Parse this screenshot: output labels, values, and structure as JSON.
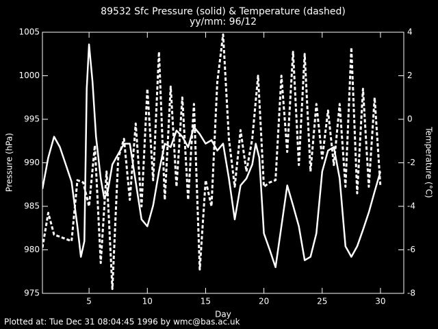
{
  "chart_data": {
    "type": "line",
    "title": "89532 Sfc Pressure (solid) & Temperature (dashed)",
    "subtitle": "yy/mm: 96/12",
    "x_label": "Day",
    "y_label": "Pressure (hPa)",
    "y2_label": "Temperature (°C)",
    "annotation": "Plotted at: Tue Dec 31 08:04:45 1996 by wmc@bas.ac.uk",
    "xlim": [
      1,
      32
    ],
    "xticks": [
      5,
      10,
      15,
      20,
      25,
      30
    ],
    "ylim": [
      975,
      1005
    ],
    "yticks": [
      975,
      980,
      985,
      990,
      995,
      1000,
      1005
    ],
    "y2lim": [
      -8,
      4
    ],
    "y2ticks": [
      -8,
      -6,
      -4,
      -2,
      0,
      2,
      4
    ],
    "series": [
      {
        "color": "#ffffff",
        "style": "solid",
        "x": [
          1,
          1.5,
          2,
          2.5,
          3,
          3.5,
          4,
          4.3,
          4.6,
          4.8,
          5,
          5.3,
          5.6,
          6,
          6.3,
          6.6,
          7,
          7.5,
          8,
          8.5,
          9,
          9.5,
          10,
          10.5,
          11,
          11.5,
          12,
          12.5,
          13,
          13.5,
          14,
          14.5,
          15,
          15.5,
          16,
          16.5,
          17,
          17.5,
          18,
          18.5,
          19,
          19.3,
          19.6,
          20,
          20.5,
          21,
          21.5,
          22,
          22.5,
          23,
          23.5,
          24,
          24.5,
          25,
          25.5,
          26,
          26.5,
          27,
          27.5,
          28,
          28.5,
          29,
          29.5,
          30
        ],
        "values": [
          987,
          990.6,
          993,
          991.8,
          989.8,
          987.8,
          982.7,
          979.2,
          981,
          998.5,
          1003.6,
          999.3,
          993,
          988.2,
          985.9,
          986.7,
          989.8,
          991,
          992.2,
          992.2,
          987.8,
          983.5,
          982.7,
          985.1,
          989,
          992.2,
          991.8,
          993.7,
          993,
          991.8,
          994.1,
          993.3,
          992.2,
          992.6,
          991.4,
          992.2,
          988.2,
          983.5,
          987.4,
          988.2,
          989.8,
          992.2,
          990.6,
          981.9,
          980,
          978,
          982.7,
          987.4,
          985.1,
          982.7,
          978.8,
          979.2,
          981.9,
          989,
          991.4,
          991.8,
          988.2,
          980.4,
          979.2,
          980.4,
          982.3,
          984.3,
          986.7,
          989
        ]
      },
      {
        "color": "#ffffff",
        "style": "dashed",
        "axis": "y2",
        "x": [
          1,
          1.5,
          2,
          3,
          3.5,
          4,
          4.5,
          5,
          5.5,
          6,
          6.5,
          7,
          7.5,
          8,
          8.5,
          9,
          9.5,
          10,
          10.5,
          11,
          11.5,
          12,
          12.5,
          13,
          13.5,
          14,
          14.5,
          15,
          15.5,
          16,
          16.5,
          17,
          17.5,
          18,
          18.5,
          19,
          19.5,
          20,
          20.5,
          21,
          21.5,
          22,
          22.5,
          23,
          23.5,
          24,
          24.5,
          25,
          25.5,
          26,
          26.5,
          27,
          27.5,
          28,
          28.5,
          29,
          29.5,
          30
        ],
        "values": [
          -5.9,
          -4.3,
          -5.3,
          -5.5,
          -5.6,
          -2.8,
          -2.9,
          -4,
          -1.2,
          -6.6,
          -2.4,
          -7.8,
          -1.8,
          -0.9,
          -3.7,
          -0.2,
          -4,
          1.4,
          -2.8,
          3.1,
          -3.7,
          1.5,
          -3.1,
          1,
          -3.7,
          0.7,
          -6.9,
          -2.8,
          -4,
          1.7,
          3.9,
          -0.9,
          -3.1,
          -0.5,
          -2.4,
          -0.9,
          2,
          -3.1,
          -2.9,
          -2.8,
          2,
          -1.5,
          3.1,
          -2.1,
          3,
          -2.4,
          0.7,
          -1.8,
          0.4,
          -2.1,
          0.7,
          -3.1,
          3.3,
          -3.4,
          1.4,
          -3.1,
          1,
          -3.1
        ]
      }
    ]
  }
}
